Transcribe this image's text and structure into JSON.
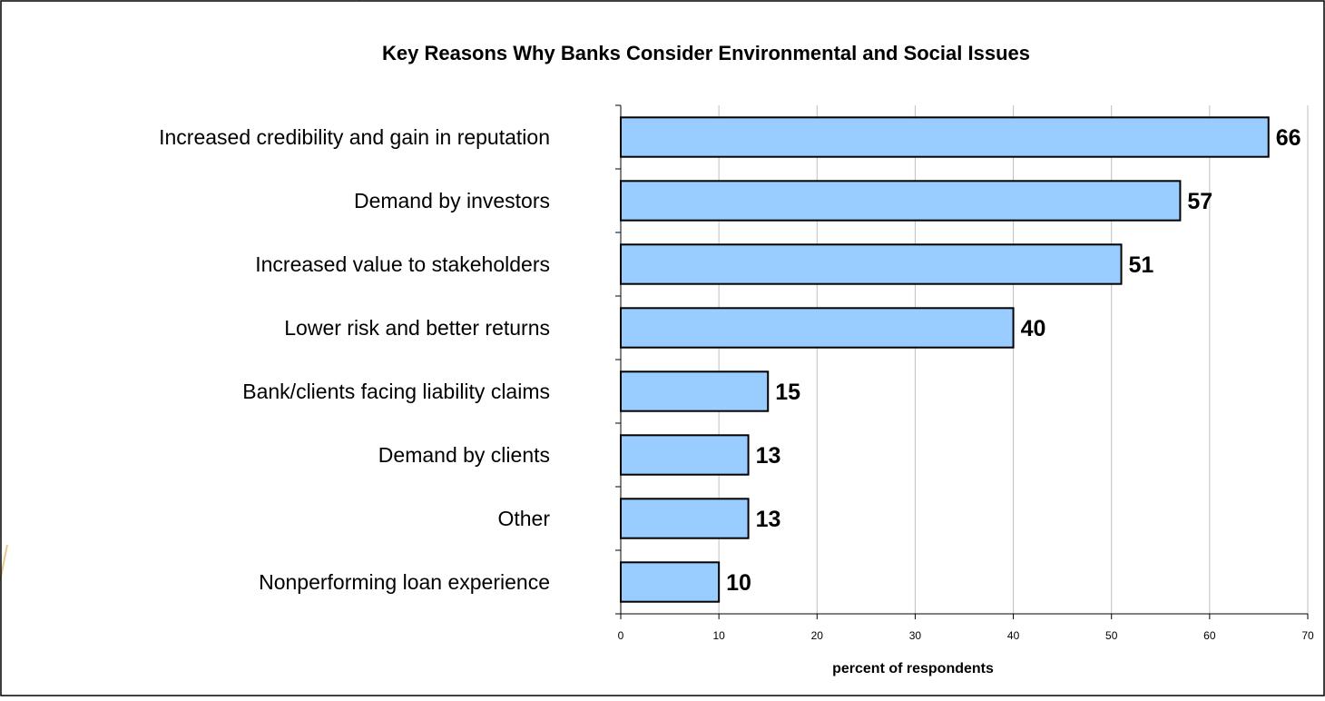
{
  "chart_data": {
    "type": "bar",
    "orientation": "horizontal",
    "title": "Key Reasons Why Banks Consider Environmental and Social Issues",
    "xlabel": "percent of respondents",
    "ylabel": "",
    "categories": [
      "Increased credibility and gain in reputation",
      "Demand by investors",
      "Increased value to stakeholders",
      "Lower risk and better returns",
      "Bank/clients facing liability claims",
      "Demand by clients",
      "Other",
      "Nonperforming loan experience"
    ],
    "values": [
      66,
      57,
      51,
      40,
      15,
      13,
      13,
      10
    ],
    "data_labels": [
      "66",
      "57",
      "51",
      "40",
      "15",
      "13",
      "13",
      "10"
    ],
    "xlim": [
      0,
      70
    ],
    "x_ticks": [
      "0",
      "10",
      "20",
      "30",
      "40",
      "50",
      "60",
      "70"
    ],
    "grid": true,
    "legend": "none",
    "colors": {
      "bar_fill": "#99CCFF",
      "bar_stroke": "#000000",
      "gridline": "#BFBFBF",
      "frame_accent": "#E8C98A"
    }
  }
}
